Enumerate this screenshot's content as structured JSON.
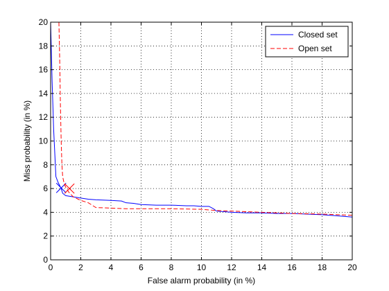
{
  "chart_data": {
    "type": "line",
    "title": "",
    "xlabel": "False alarm probability (in %)",
    "ylabel": "Miss probability (in %)",
    "xlim": [
      0,
      20
    ],
    "ylim": [
      0,
      20
    ],
    "xticks": [
      0,
      2,
      4,
      6,
      8,
      10,
      12,
      14,
      16,
      18,
      20
    ],
    "yticks": [
      0,
      2,
      4,
      6,
      8,
      10,
      12,
      14,
      16,
      18,
      20
    ],
    "grid": true,
    "legend_position": "top-right",
    "series": [
      {
        "name": "Closed set",
        "color": "#0000ff",
        "dash": "solid",
        "x": [
          0.0,
          0.1,
          0.2,
          0.35,
          0.5,
          0.7,
          0.8,
          1.0,
          1.5,
          2.0,
          2.5,
          3.0,
          4.0,
          4.7,
          5.0,
          5.5,
          6.0,
          7.0,
          8.0,
          9.0,
          9.5,
          10.0,
          10.5,
          10.8,
          11.0,
          12.0,
          13.0,
          14.0,
          15.0,
          16.0,
          17.0,
          18.0,
          19.0,
          20.0
        ],
        "y": [
          20.0,
          15.0,
          11.0,
          7.0,
          6.5,
          6.0,
          5.6,
          5.4,
          5.3,
          5.2,
          5.1,
          5.05,
          5.0,
          4.95,
          4.8,
          4.75,
          4.65,
          4.6,
          4.6,
          4.55,
          4.55,
          4.5,
          4.5,
          4.3,
          4.1,
          4.0,
          3.95,
          3.95,
          3.9,
          3.9,
          3.85,
          3.8,
          3.7,
          3.6
        ],
        "marker": {
          "symbol": "x",
          "x": 0.7,
          "y": 6.05
        }
      },
      {
        "name": "Open set",
        "color": "#ff0000",
        "dash": "dashed",
        "x": [
          0.55,
          0.6,
          0.65,
          0.7,
          0.75,
          0.8,
          0.9,
          1.0,
          1.2,
          1.5,
          2.0,
          2.5,
          3.0,
          4.0,
          5.0,
          6.0,
          8.0,
          10.0,
          10.5,
          11.0,
          12.0,
          14.0,
          16.0,
          18.0,
          20.0
        ],
        "y": [
          20.0,
          17.0,
          13.0,
          10.0,
          8.0,
          7.0,
          6.4,
          6.1,
          5.7,
          5.3,
          5.0,
          4.8,
          4.4,
          4.35,
          4.3,
          4.3,
          4.3,
          4.25,
          4.2,
          4.15,
          4.1,
          4.0,
          3.9,
          3.85,
          3.75
        ],
        "marker": {
          "symbol": "x",
          "x": 1.25,
          "y": 6.0
        }
      }
    ]
  }
}
